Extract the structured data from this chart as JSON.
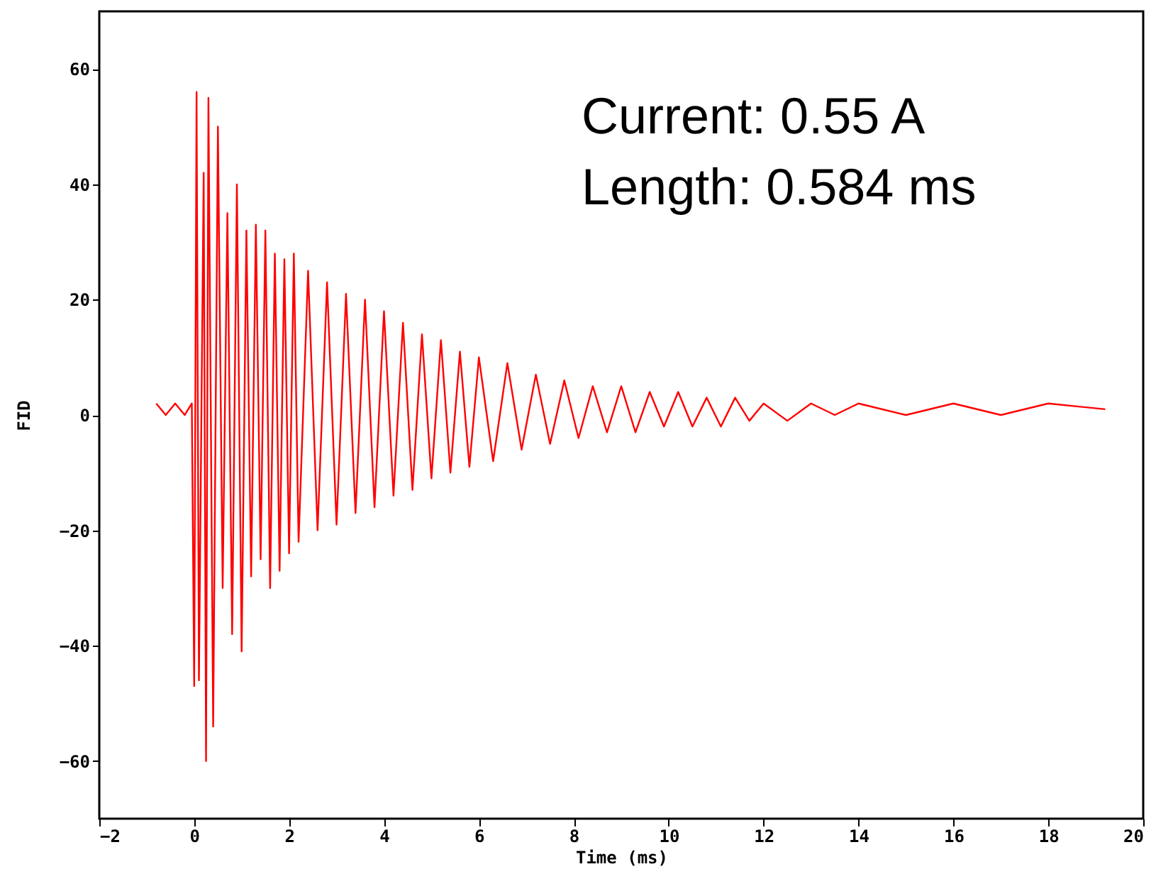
{
  "chart_data": {
    "type": "line",
    "xlabel": "Time (ms)",
    "ylabel": "FID",
    "annotations": [
      "Current: 0.55 A",
      "Length: 0.584 ms"
    ],
    "xlim": [
      -2,
      20
    ],
    "xticks": [
      -2,
      0,
      2,
      4,
      6,
      8,
      10,
      12,
      14,
      16,
      18,
      20
    ],
    "ylim": [
      -70,
      70
    ],
    "yticks": [
      -60,
      -40,
      -20,
      0,
      20,
      40,
      60
    ],
    "grid": false,
    "marker": "none",
    "line_style": "solid",
    "series": [
      {
        "color": "#ff0000",
        "x": [
          -0.8,
          -0.6,
          -0.4,
          -0.2,
          -0.05,
          0.0,
          0.05,
          0.1,
          0.2,
          0.25,
          0.3,
          0.4,
          0.5,
          0.6,
          0.7,
          0.8,
          0.9,
          1.0,
          1.1,
          1.2,
          1.3,
          1.4,
          1.5,
          1.6,
          1.7,
          1.8,
          1.9,
          2.0,
          2.1,
          2.2,
          2.4,
          2.6,
          2.8,
          3.0,
          3.2,
          3.4,
          3.6,
          3.8,
          4.0,
          4.2,
          4.4,
          4.6,
          4.8,
          5.0,
          5.2,
          5.4,
          5.6,
          5.8,
          6.0,
          6.3,
          6.6,
          6.9,
          7.2,
          7.5,
          7.8,
          8.1,
          8.4,
          8.7,
          9.0,
          9.3,
          9.6,
          9.9,
          10.2,
          10.5,
          10.8,
          11.1,
          11.4,
          11.7,
          12.0,
          12.5,
          13.0,
          13.5,
          14.0,
          15.0,
          16.0,
          17.0,
          18.0,
          19.2
        ],
        "values": [
          2,
          0,
          2,
          0,
          2,
          -47,
          56,
          -46,
          42,
          -60,
          55,
          -54,
          50,
          -30,
          35,
          -38,
          40,
          -41,
          32,
          -28,
          33,
          -25,
          32,
          -30,
          28,
          -27,
          27,
          -24,
          28,
          -22,
          25,
          -20,
          23,
          -19,
          21,
          -17,
          20,
          -16,
          18,
          -14,
          16,
          -13,
          14,
          -11,
          13,
          -10,
          11,
          -9,
          10,
          -8,
          9,
          -6,
          7,
          -5,
          6,
          -4,
          5,
          -3,
          5,
          -3,
          4,
          -2,
          4,
          -2,
          3,
          -2,
          3,
          -1,
          2,
          -1,
          2,
          0,
          2,
          0,
          2,
          0,
          2,
          1
        ]
      }
    ]
  }
}
